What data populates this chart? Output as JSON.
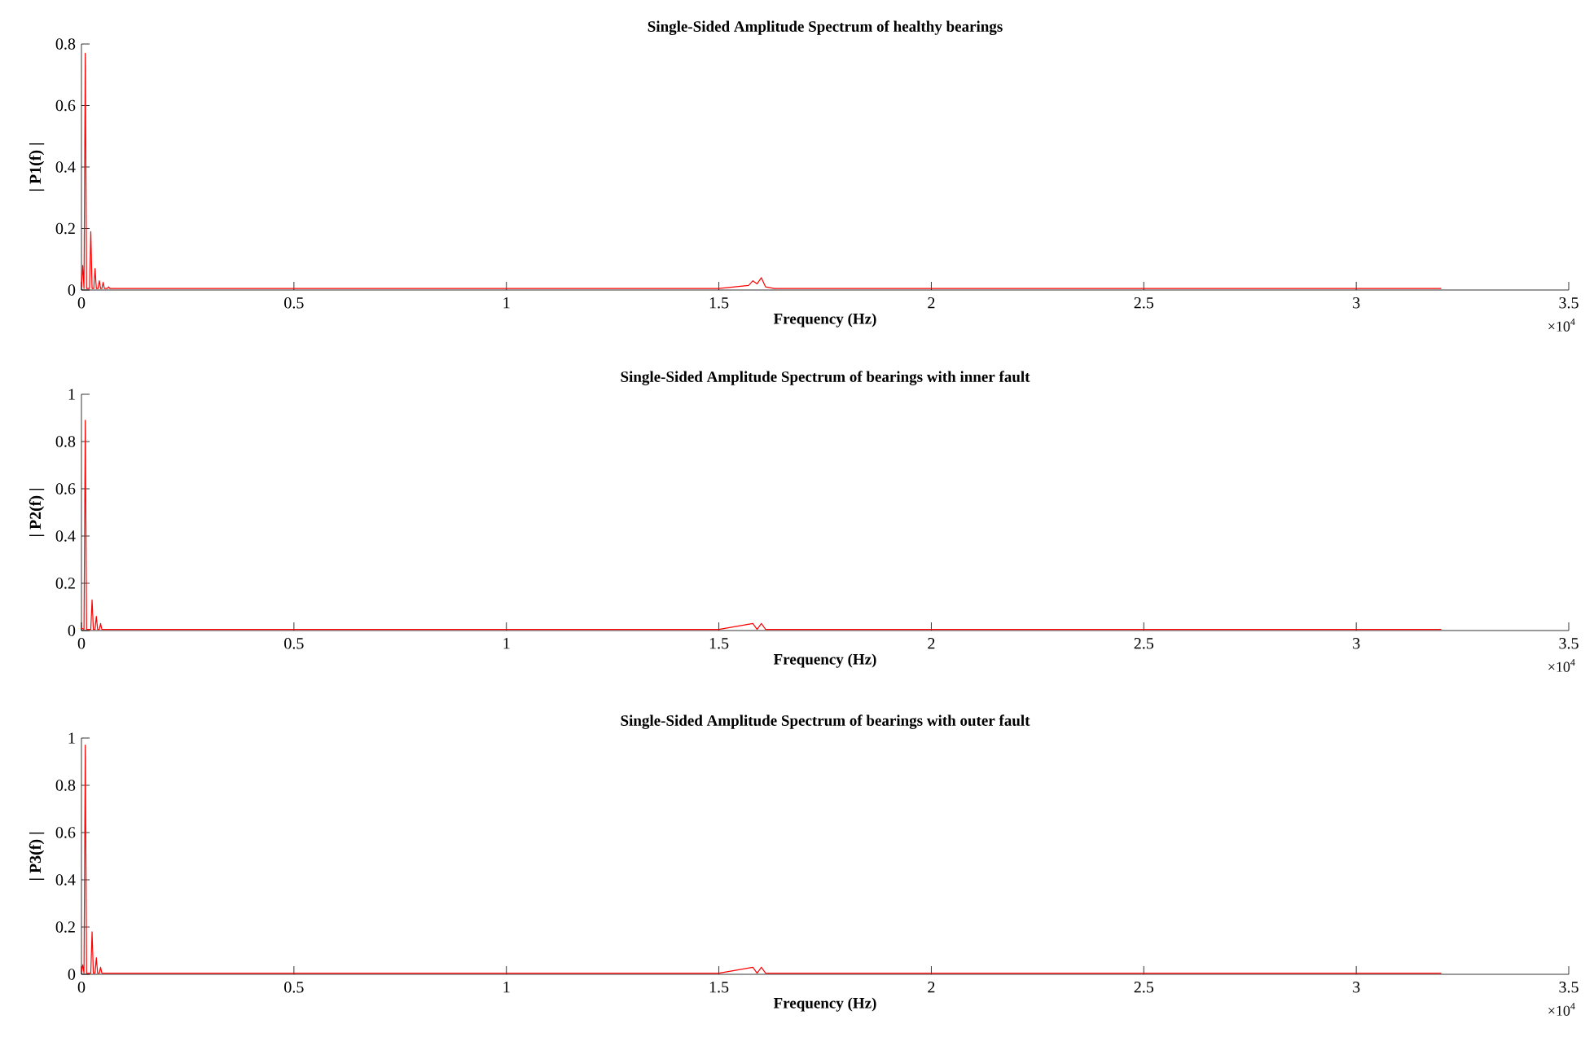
{
  "chart_data": [
    {
      "type": "line",
      "title": "Single-Sided Amplitude Spectrum of healthy bearings",
      "xlabel": "Frequency (Hz)",
      "ylabel": "| P1(f) |",
      "color": "#ff0000",
      "annotations": [
        "×10$^{4}$"
      ],
      "x": [
        0,
        0.003,
        0.006,
        0.009,
        0.012,
        0.019,
        0.022,
        0.025,
        0.029,
        0.032,
        0.035,
        0.039,
        0.042,
        0.045,
        0.048,
        0.051,
        0.054,
        0.061,
        0.064,
        0.067,
        0.1,
        0.5,
        1,
        1.5,
        1.57,
        1.58,
        1.59,
        1.6,
        1.61,
        1.63,
        2,
        2.5,
        3,
        3.2
      ],
      "values": [
        0.01,
        0.08,
        0.005,
        0.77,
        0.005,
        0.005,
        0.19,
        0.005,
        0.005,
        0.07,
        0.005,
        0.005,
        0.03,
        0.005,
        0.005,
        0.025,
        0.005,
        0.005,
        0.01,
        0.005,
        0.005,
        0.005,
        0.005,
        0.005,
        0.015,
        0.03,
        0.02,
        0.04,
        0.01,
        0.005,
        0.005,
        0.005,
        0.005,
        0.005
      ],
      "xlim": [
        0,
        3.5
      ],
      "ylim": [
        0,
        0.8
      ],
      "xticks": [
        0,
        0.5,
        1,
        1.5,
        2,
        2.5,
        3,
        3.5
      ],
      "yticks": [
        0,
        0.2,
        0.4,
        0.6,
        0.8
      ]
    },
    {
      "type": "line",
      "title": "Single-Sided Amplitude Spectrum of bearings with inner fault",
      "xlabel": "Frequency (Hz)",
      "ylabel": "| P2(f) |",
      "color": "#ff0000",
      "annotations": [
        "×10$^{4}$"
      ],
      "x": [
        0,
        0.006,
        0.009,
        0.012,
        0.022,
        0.025,
        0.028,
        0.032,
        0.035,
        0.038,
        0.042,
        0.045,
        0.048,
        0.1,
        0.5,
        1,
        1.5,
        1.58,
        1.59,
        1.6,
        1.61,
        1.62,
        2,
        2.5,
        3,
        3.2
      ],
      "values": [
        0.01,
        0.005,
        0.89,
        0.005,
        0.005,
        0.13,
        0.005,
        0.005,
        0.06,
        0.005,
        0.005,
        0.03,
        0.005,
        0.005,
        0.005,
        0.005,
        0.005,
        0.03,
        0.005,
        0.03,
        0.005,
        0.005,
        0.005,
        0.005,
        0.005,
        0.005
      ],
      "xlim": [
        0,
        3.5
      ],
      "ylim": [
        0,
        1
      ],
      "xticks": [
        0,
        0.5,
        1,
        1.5,
        2,
        2.5,
        3,
        3.5
      ],
      "yticks": [
        0,
        0.2,
        0.4,
        0.6,
        0.8,
        1
      ]
    },
    {
      "type": "line",
      "title": "Single-Sided Amplitude Spectrum of bearings with outer fault",
      "xlabel": "Frequency (Hz)",
      "ylabel": "| P3(f) |",
      "color": "#ff0000",
      "annotations": [
        "×10$^{4}$"
      ],
      "x": [
        0,
        0.003,
        0.006,
        0.009,
        0.012,
        0.022,
        0.025,
        0.028,
        0.032,
        0.035,
        0.038,
        0.042,
        0.045,
        0.048,
        0.1,
        0.5,
        1,
        1.5,
        1.58,
        1.59,
        1.6,
        1.61,
        1.62,
        2,
        2.5,
        3,
        3.2
      ],
      "values": [
        0.01,
        0.04,
        0.005,
        0.97,
        0.005,
        0.005,
        0.18,
        0.005,
        0.005,
        0.07,
        0.005,
        0.005,
        0.03,
        0.005,
        0.005,
        0.005,
        0.005,
        0.005,
        0.03,
        0.005,
        0.03,
        0.005,
        0.005,
        0.005,
        0.005,
        0.005,
        0.005
      ],
      "xlim": [
        0,
        3.5
      ],
      "ylim": [
        0,
        1
      ],
      "xticks": [
        0,
        0.5,
        1,
        1.5,
        2,
        2.5,
        3,
        3.5
      ],
      "yticks": [
        0,
        0.2,
        0.4,
        0.6,
        0.8,
        1
      ]
    }
  ]
}
